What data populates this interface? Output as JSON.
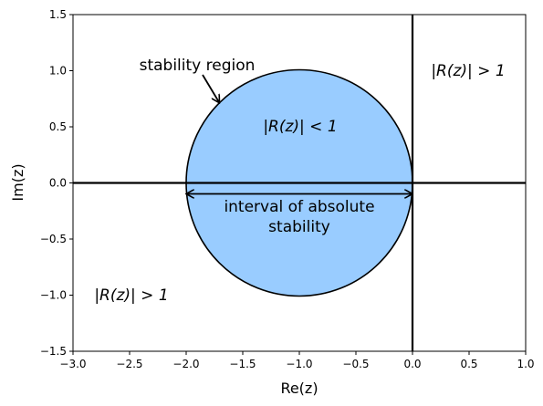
{
  "chart_data": {
    "type": "scatter",
    "title": "",
    "xlabel": "Re(z)",
    "ylabel": "Im(z)",
    "xlim": [
      -3.0,
      1.0
    ],
    "ylim": [
      -1.5,
      1.5
    ],
    "xticks": [
      "−3.0",
      "−2.5",
      "−2.0",
      "−1.5",
      "−1.0",
      "−0.5",
      "0.0",
      "0.5",
      "1.0"
    ],
    "yticks": [
      "1.5",
      "1.0",
      "0.5",
      "0.0",
      "−0.5",
      "−1.0",
      "−1.5"
    ],
    "grid": false,
    "circle": {
      "center": [
        -1.0,
        0.0
      ],
      "radius": 1.0,
      "fill": "#99CCFF",
      "edge": "#000000"
    },
    "interval": {
      "from": -2.0,
      "to": 0.0
    },
    "annotations": {
      "stability_region": "stability region",
      "inside": "|R(z)| < 1",
      "outside_right": "|R(z)| > 1",
      "outside_left": "|R(z)| > 1",
      "interval_line1": "interval of absolute",
      "interval_line2": "stability"
    }
  }
}
